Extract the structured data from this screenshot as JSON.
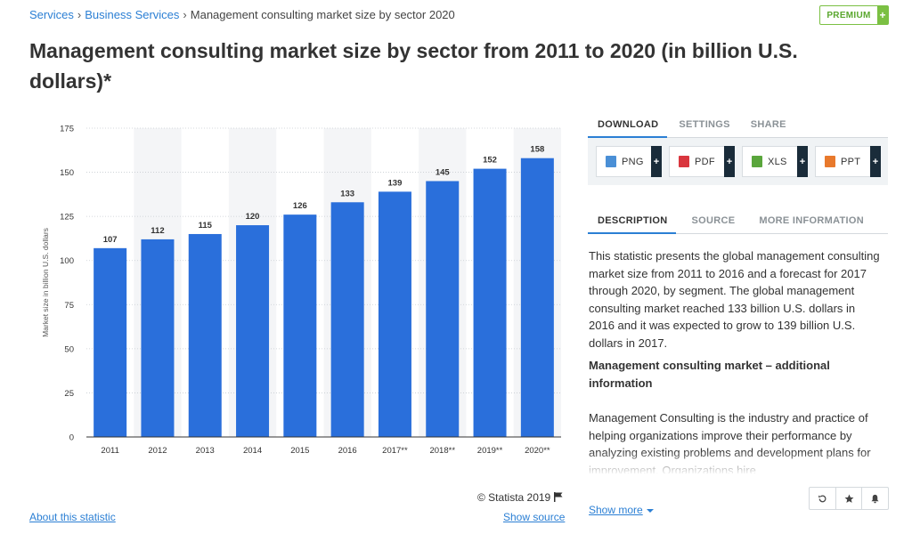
{
  "breadcrumb": {
    "items": [
      "Services",
      "Business Services"
    ],
    "current": "Management consulting market size by sector 2020",
    "separator": "›"
  },
  "premium": {
    "label": "PREMIUM",
    "plus": "+"
  },
  "title": "Management consulting market size by sector from 2011 to 2020 (in billion U.S. dollars)*",
  "chart_data": {
    "type": "bar",
    "title": "",
    "xlabel": "",
    "ylabel": "Market size in billion U.S. dollars",
    "categories": [
      "2011",
      "2012",
      "2013",
      "2014",
      "2015",
      "2016",
      "2017**",
      "2018**",
      "2019**",
      "2020**"
    ],
    "values": [
      107,
      112,
      115,
      120,
      126,
      133,
      139,
      145,
      152,
      158
    ],
    "ylim": [
      0,
      175
    ],
    "yticks": [
      0,
      25,
      50,
      75,
      100,
      125,
      150,
      175
    ],
    "bar_color": "#2a6fdb",
    "grid": true,
    "data_labels": true
  },
  "copyright": "© Statista 2019",
  "links": {
    "about": "About this statistic",
    "show_source": "Show source",
    "show_more": "Show more"
  },
  "download_tabs": [
    "DOWNLOAD",
    "SETTINGS",
    "SHARE"
  ],
  "download_buttons": [
    {
      "label": "PNG",
      "icon": "png-file-icon",
      "color": "#4a8fd6"
    },
    {
      "label": "PDF",
      "icon": "pdf-file-icon",
      "color": "#d9363e"
    },
    {
      "label": "XLS",
      "icon": "xls-file-icon",
      "color": "#5aa63c"
    },
    {
      "label": "PPT",
      "icon": "ppt-file-icon",
      "color": "#e8792c"
    }
  ],
  "download_plus": "+",
  "info_tabs": [
    "DESCRIPTION",
    "SOURCE",
    "MORE INFORMATION"
  ],
  "description": {
    "para1": "This statistic presents the global management consulting market size from 2011 to 2016 and a forecast for 2017 through 2020, by segment. The global management consulting market reached 133 billion U.S. dollars in 2016 and it was expected to grow to 139 billion U.S. dollars in 2017.",
    "heading": "Management consulting market – additional information",
    "para2": "Management Consulting is the industry and practice of helping organizations improve their performance by analyzing existing problems and development plans for improvement. Organizations hire"
  },
  "colors": {
    "accent": "#2b7fd4",
    "premium_green": "#7bc043",
    "dark_plus": "#1a2c3a"
  }
}
